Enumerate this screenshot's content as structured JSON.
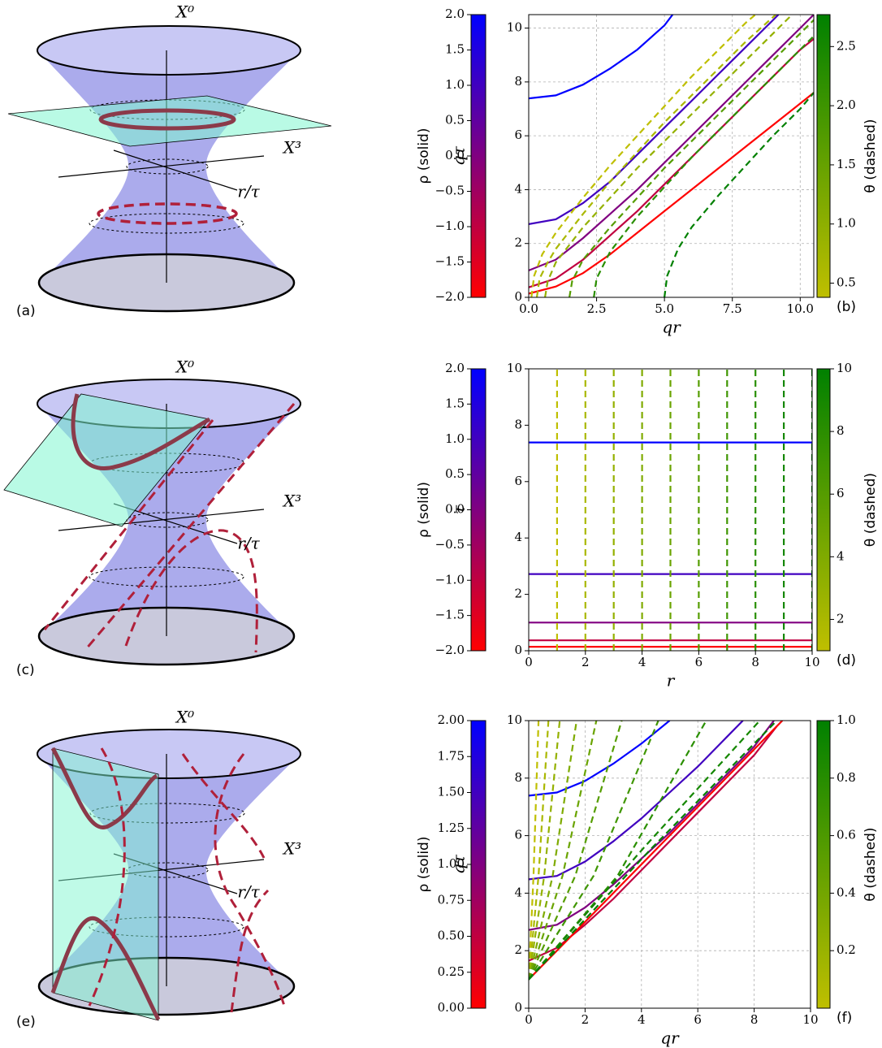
{
  "diagrams": [
    {
      "axis_0": "X⁰",
      "axis_3": "X³",
      "axis_r": "r/τ",
      "label": "(a)"
    },
    {
      "axis_0": "X⁰",
      "axis_3": "X³",
      "axis_r": "r/τ",
      "label": "(c)"
    },
    {
      "axis_0": "X⁰",
      "axis_3": "X³",
      "axis_r": "r/τ",
      "label": "(e)"
    }
  ],
  "chart_data": [
    {
      "type": "line",
      "label": "(b)",
      "xlabel": "qr",
      "ylabel": "qτ",
      "grid": true,
      "xlim": [
        0,
        10.5
      ],
      "ylim": [
        0,
        10.5
      ],
      "xticks": [
        {
          "value": 0,
          "label": "0.0"
        },
        2.5,
        {
          "value": 5,
          "label": "5.0"
        },
        7.5,
        {
          "value": 10,
          "label": "10.0"
        }
      ],
      "yticks": [
        0,
        2,
        4,
        6,
        8,
        10
      ],
      "colorbars": [
        {
          "side": "left",
          "label": "ρ (solid)",
          "lim": [
            -2,
            2
          ],
          "colors": [
            "#ff0000",
            "#800080",
            "#0000ff"
          ],
          "ticks": [
            {
              "value": -2,
              "label": "−2.0"
            },
            {
              "value": -1.5,
              "label": "−1.5"
            },
            {
              "value": -1,
              "label": "−1.0"
            },
            {
              "value": -0.5,
              "label": "−0.5"
            },
            {
              "value": 0,
              "label": "0.0"
            },
            0.5,
            {
              "value": 1,
              "label": "1.0"
            },
            1.5,
            {
              "value": 2,
              "label": "2.0"
            }
          ]
        },
        {
          "side": "right",
          "label": "θ (dashed)",
          "lim": [
            0.38,
            2.77
          ],
          "colors": [
            "#bfbf00",
            "#008000"
          ],
          "ticks": [
            0.5,
            {
              "value": 1,
              "label": "1.0"
            },
            1.5,
            {
              "value": 2,
              "label": "2.0"
            },
            2.5
          ]
        }
      ],
      "series": [
        {
          "color": "#0000ff",
          "dashed": false,
          "x": [
            0,
            1,
            2,
            3,
            4,
            5,
            5.3
          ],
          "values": [
            7.39,
            7.5,
            7.9,
            8.5,
            9.2,
            10.1,
            10.5
          ]
        },
        {
          "color": "#4000c0",
          "dashed": false,
          "x": [
            0,
            1,
            2,
            3,
            4,
            5,
            6,
            7,
            8,
            9,
            9.2
          ],
          "values": [
            2.72,
            2.9,
            3.5,
            4.3,
            5.3,
            6.3,
            7.3,
            8.3,
            9.3,
            10.3,
            10.5
          ]
        },
        {
          "color": "#800080",
          "dashed": false,
          "x": [
            0,
            1,
            2,
            3,
            4,
            5,
            6,
            7,
            8,
            9,
            10,
            10.5
          ],
          "values": [
            1,
            1.4,
            2.2,
            3.1,
            4,
            5,
            6,
            7,
            8,
            9,
            10,
            10.5
          ]
        },
        {
          "color": "#c00040",
          "dashed": false,
          "x": [
            0,
            1,
            2,
            3,
            4,
            5,
            6,
            7,
            8,
            9,
            10,
            10.5
          ],
          "values": [
            0.37,
            0.7,
            1.4,
            2.3,
            3.2,
            4.2,
            5.2,
            6.2,
            7.2,
            8.2,
            9.2,
            9.6
          ]
        },
        {
          "color": "#ff0000",
          "dashed": false,
          "x": [
            0,
            1,
            2,
            3,
            4,
            5,
            6,
            7,
            8,
            9,
            10,
            10.5
          ],
          "values": [
            0.14,
            0.4,
            0.9,
            1.6,
            2.4,
            3.2,
            4,
            4.8,
            5.6,
            6.4,
            7.2,
            7.6
          ]
        },
        {
          "color": "#bfbf00",
          "dashed": true,
          "x": [
            0.1,
            0.2,
            0.5,
            1,
            2,
            3,
            4,
            5,
            6,
            7,
            8,
            8.35
          ],
          "values": [
            0,
            0.8,
            1.6,
            2.4,
            3.7,
            4.9,
            6,
            7.1,
            8.2,
            9.2,
            10.2,
            10.5
          ]
        },
        {
          "color": "#aab800",
          "dashed": true,
          "x": [
            0.3,
            0.4,
            0.7,
            1,
            2,
            3,
            4,
            5,
            6,
            7,
            8,
            9.1
          ],
          "values": [
            0,
            0.7,
            1.3,
            1.8,
            3.1,
            4.3,
            5.4,
            6.5,
            7.5,
            8.5,
            9.5,
            10.5
          ]
        },
        {
          "color": "#94b100",
          "dashed": true,
          "x": [
            0.6,
            0.7,
            1,
            2,
            3,
            4,
            5,
            6,
            7,
            8,
            9,
            9.7
          ],
          "values": [
            0,
            0.6,
            1.3,
            2.6,
            3.7,
            4.8,
            5.8,
            6.8,
            7.8,
            8.8,
            9.8,
            10.5
          ]
        },
        {
          "color": "#559d00",
          "dashed": true,
          "x": [
            1.5,
            1.6,
            2,
            3,
            4,
            5,
            6,
            7,
            8,
            9,
            10,
            10.5
          ],
          "values": [
            0,
            0.6,
            1.4,
            2.6,
            3.7,
            4.8,
            5.8,
            6.8,
            7.8,
            8.8,
            9.8,
            10.3
          ]
        },
        {
          "color": "#2a8f00",
          "dashed": true,
          "x": [
            2.4,
            2.5,
            3,
            4,
            5,
            6,
            7,
            8,
            9,
            10,
            10.5
          ],
          "values": [
            0,
            0.7,
            1.7,
            3,
            4.1,
            5.2,
            6.2,
            7.2,
            8.2,
            9.2,
            9.7
          ]
        },
        {
          "color": "#008000",
          "dashed": true,
          "x": [
            5,
            5.1,
            5.5,
            6,
            7,
            8,
            9,
            10,
            10.5
          ],
          "values": [
            0,
            0.8,
            1.8,
            2.6,
            3.8,
            4.9,
            6,
            7,
            7.6
          ]
        }
      ]
    },
    {
      "type": "line",
      "label": "(d)",
      "xlabel": "r",
      "ylabel": "τ",
      "grid": false,
      "xlim": [
        0,
        10
      ],
      "ylim": [
        0,
        10
      ],
      "xticks": [
        0,
        2,
        4,
        6,
        8,
        10
      ],
      "yticks": [
        0,
        2,
        4,
        6,
        8,
        10
      ],
      "colorbars": [
        {
          "side": "left",
          "label": "ρ (solid)",
          "lim": [
            -2,
            2
          ],
          "colors": [
            "#ff0000",
            "#800080",
            "#0000ff"
          ],
          "ticks": [
            {
              "value": -2,
              "label": "−2.0"
            },
            {
              "value": -1.5,
              "label": "−1.5"
            },
            {
              "value": -1,
              "label": "−1.0"
            },
            {
              "value": -0.5,
              "label": "−0.5"
            },
            {
              "value": 0,
              "label": "0.0"
            },
            0.5,
            {
              "value": 1,
              "label": "1.0"
            },
            1.5,
            {
              "value": 2,
              "label": "2.0"
            }
          ]
        },
        {
          "side": "right",
          "label": "θ (dashed)",
          "lim": [
            1,
            10
          ],
          "colors": [
            "#bfbf00",
            "#008000"
          ],
          "ticks": [
            2,
            4,
            6,
            8,
            10
          ]
        }
      ],
      "series": [
        {
          "color": "#0000ff",
          "dashed": false,
          "x": [
            0,
            10
          ],
          "values": [
            7.39,
            7.39
          ]
        },
        {
          "color": "#4000c0",
          "dashed": false,
          "x": [
            0,
            10
          ],
          "values": [
            2.72,
            2.72
          ]
        },
        {
          "color": "#800080",
          "dashed": false,
          "x": [
            0,
            10
          ],
          "values": [
            1,
            1
          ]
        },
        {
          "color": "#c00040",
          "dashed": false,
          "x": [
            0,
            10
          ],
          "values": [
            0.37,
            0.37
          ]
        },
        {
          "color": "#ff0000",
          "dashed": false,
          "x": [
            0,
            10
          ],
          "values": [
            0.14,
            0.14
          ]
        },
        {
          "color": "#bfbf00",
          "dashed": true,
          "x": [
            1,
            1
          ],
          "values": [
            0,
            10
          ]
        },
        {
          "color": "#aab800",
          "dashed": true,
          "x": [
            2,
            2
          ],
          "values": [
            0,
            10
          ]
        },
        {
          "color": "#94b100",
          "dashed": true,
          "x": [
            3,
            3
          ],
          "values": [
            0,
            10
          ]
        },
        {
          "color": "#7fab00",
          "dashed": true,
          "x": [
            4,
            4
          ],
          "values": [
            0,
            10
          ]
        },
        {
          "color": "#6aa400",
          "dashed": true,
          "x": [
            5,
            5
          ],
          "values": [
            0,
            10
          ]
        },
        {
          "color": "#559d00",
          "dashed": true,
          "x": [
            6,
            6
          ],
          "values": [
            0,
            10
          ]
        },
        {
          "color": "#3f9600",
          "dashed": true,
          "x": [
            7,
            7
          ],
          "values": [
            0,
            10
          ]
        },
        {
          "color": "#2a8f00",
          "dashed": true,
          "x": [
            8,
            8
          ],
          "values": [
            0,
            10
          ]
        },
        {
          "color": "#158700",
          "dashed": true,
          "x": [
            9,
            9
          ],
          "values": [
            0,
            10
          ]
        },
        {
          "color": "#008000",
          "dashed": true,
          "x": [
            10,
            10
          ],
          "values": [
            0,
            10
          ]
        }
      ]
    },
    {
      "type": "line",
      "label": "(f)",
      "xlabel": "qr",
      "ylabel": "qτ",
      "grid": true,
      "xlim": [
        0,
        10
      ],
      "ylim": [
        0,
        10
      ],
      "xticks": [
        0,
        2,
        4,
        6,
        8,
        10
      ],
      "yticks": [
        0,
        2,
        4,
        6,
        8,
        10
      ],
      "colorbars": [
        {
          "side": "left",
          "label": "ρ (solid)",
          "lim": [
            0,
            2
          ],
          "colors": [
            "#ff0000",
            "#800080",
            "#0000ff"
          ],
          "ticks": [
            {
              "value": 0,
              "label": "0.00"
            },
            0.25,
            {
              "value": 0.5,
              "label": "0.50"
            },
            0.75,
            {
              "value": 1,
              "label": "1.00"
            },
            1.25,
            {
              "value": 1.5,
              "label": "1.50"
            },
            1.75,
            {
              "value": 2,
              "label": "2.00"
            }
          ]
        },
        {
          "side": "right",
          "label": "θ (dashed)",
          "lim": [
            0,
            1
          ],
          "colors": [
            "#bfbf00",
            "#008000"
          ],
          "ticks": [
            0.2,
            0.4,
            0.6,
            0.8,
            {
              "value": 1,
              "label": "1.0"
            }
          ]
        }
      ],
      "series": [
        {
          "color": "#0000ff",
          "dashed": false,
          "x": [
            0,
            1,
            2,
            3,
            4,
            5
          ],
          "values": [
            7.39,
            7.5,
            7.9,
            8.5,
            9.2,
            10
          ]
        },
        {
          "color": "#4000c0",
          "dashed": false,
          "x": [
            0,
            1,
            2,
            3,
            4,
            5,
            6,
            7,
            7.6
          ],
          "values": [
            4.48,
            4.6,
            5.1,
            5.8,
            6.6,
            7.5,
            8.4,
            9.4,
            10
          ]
        },
        {
          "color": "#800080",
          "dashed": false,
          "x": [
            0,
            1,
            2,
            3,
            4,
            5,
            6,
            7,
            8,
            8.7
          ],
          "values": [
            2.72,
            2.9,
            3.5,
            4.3,
            5.2,
            6.1,
            7.1,
            8.1,
            9.1,
            10
          ]
        },
        {
          "color": "#c00040",
          "dashed": false,
          "x": [
            0,
            1,
            2,
            3,
            4,
            5,
            6,
            7,
            8,
            8.8
          ],
          "values": [
            1.65,
            2.1,
            2.9,
            3.8,
            4.8,
            5.8,
            6.8,
            7.8,
            8.8,
            9.8
          ]
        },
        {
          "color": "#ff0000",
          "dashed": false,
          "x": [
            0,
            9
          ],
          "values": [
            1,
            10
          ]
        },
        {
          "color": "#bfbf00",
          "dashed": true,
          "x": [
            0,
            0.17,
            0.35
          ],
          "values": [
            1,
            4.6,
            10
          ]
        },
        {
          "color": "#aab800",
          "dashed": true,
          "x": [
            0,
            0.35,
            0.7
          ],
          "values": [
            1,
            4.6,
            10
          ]
        },
        {
          "color": "#94b100",
          "dashed": true,
          "x": [
            0,
            0.55,
            1.1
          ],
          "values": [
            1,
            4.6,
            10
          ]
        },
        {
          "color": "#7fab00",
          "dashed": true,
          "x": [
            0,
            0.85,
            1.7
          ],
          "values": [
            1,
            4.6,
            10
          ]
        },
        {
          "color": "#6aa400",
          "dashed": true,
          "x": [
            0,
            1.2,
            2.4
          ],
          "values": [
            1,
            4.6,
            10
          ]
        },
        {
          "color": "#559d00",
          "dashed": true,
          "x": [
            0,
            1.65,
            3.3
          ],
          "values": [
            1,
            4.6,
            10
          ]
        },
        {
          "color": "#3f9600",
          "dashed": true,
          "x": [
            0,
            2.3,
            4.6
          ],
          "values": [
            1,
            4.6,
            10
          ]
        },
        {
          "color": "#2a8f00",
          "dashed": true,
          "x": [
            0,
            3.15,
            6.3
          ],
          "values": [
            1,
            4.6,
            10
          ]
        },
        {
          "color": "#158700",
          "dashed": true,
          "x": [
            0,
            4.1,
            8.2
          ],
          "values": [
            1,
            5.6,
            10
          ]
        },
        {
          "color": "#008000",
          "dashed": true,
          "x": [
            0,
            4.4,
            8.8
          ],
          "values": [
            1,
            5.6,
            10
          ]
        }
      ]
    }
  ]
}
